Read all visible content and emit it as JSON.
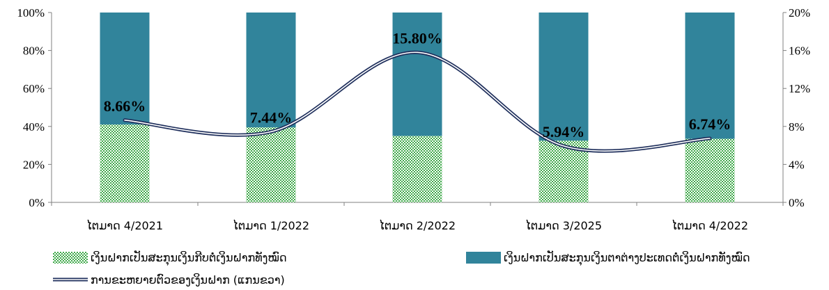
{
  "chart_data": {
    "type": "bar",
    "stacked_percent": true,
    "categories": [
      "ໄຕມາດ 4/2021",
      "ໄຕມາດ 1/2022",
      "ໄຕມາດ 2/2022",
      "ໄຕມາດ 3/2025",
      "ໄຕມາດ 4/2022"
    ],
    "series": [
      {
        "name": "ເງິນຝາກເປັນສະກຸນເງິນກີບຕໍ່ເງິນຝາກທັງໝົດ",
        "type": "bar",
        "axis": "left",
        "pattern": "green-check",
        "values": [
          41,
          39.5,
          35,
          32.5,
          33.5
        ]
      },
      {
        "name": "ເງິນຝາກເປັນສະກຸນເງິນຕາຕ່າງປະເທດຕໍ່ເງິນຝາກທັງໝົດ",
        "type": "bar",
        "axis": "left",
        "color": "#31849b",
        "values": [
          59,
          60.5,
          65,
          67.5,
          66.5
        ]
      },
      {
        "name": "ການຂະຫຍາຍຕົວຂອງເງິນຝາກ (ແກນຂວາ)",
        "type": "line",
        "axis": "right",
        "color": "#1f2f5c",
        "values": [
          8.66,
          7.44,
          15.8,
          5.94,
          6.74
        ],
        "labels": [
          "8.66%",
          "7.44%",
          "15.80%",
          "5.94%",
          "6.74%"
        ]
      }
    ],
    "left_axis": {
      "ylim": [
        0,
        100
      ],
      "ticks": [
        "0%",
        "20%",
        "40%",
        "60%",
        "80%",
        "100%"
      ]
    },
    "right_axis": {
      "ylim": [
        0,
        20
      ],
      "ticks": [
        "0%",
        "4%",
        "8%",
        "12%",
        "16%",
        "20%"
      ]
    },
    "legend_placement": "bottom",
    "grid": false
  }
}
